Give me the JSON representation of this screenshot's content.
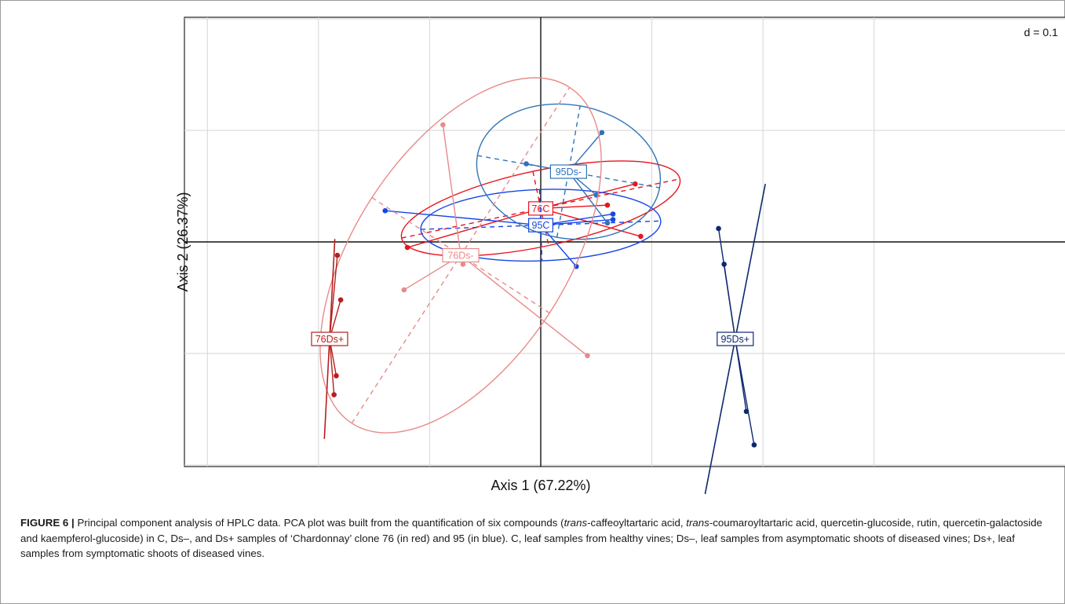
{
  "chart_data": {
    "type": "scatter",
    "subtype": "PCA class plot (ade4 s.class)",
    "title": "",
    "scale_label": "d = 0.1",
    "xlabel": "Axis 1  (67.22%)",
    "ylabel": "Axis 2  (26.37%)",
    "xlim": [
      -0.32,
      0.32
    ],
    "ylim": [
      -0.2,
      0.21
    ],
    "grid": true,
    "grid_step": 0.1,
    "groups": [
      {
        "name": "76C",
        "color": "#e8141c",
        "center": [
          0.0,
          0.03
        ],
        "points": [
          [
            -0.12,
            -0.005
          ],
          [
            0.09,
            0.005
          ],
          [
            0.06,
            0.033
          ],
          [
            0.085,
            0.052
          ]
        ],
        "ellipse": {
          "rx": 0.128,
          "ry": 0.034,
          "angle": 12
        }
      },
      {
        "name": "95C",
        "color": "#1646e6",
        "center": [
          0.0,
          0.015
        ],
        "points": [
          [
            -0.14,
            0.028
          ],
          [
            0.065,
            0.025
          ],
          [
            0.065,
            0.02
          ],
          [
            0.032,
            -0.022
          ]
        ],
        "ellipse": {
          "rx": 0.108,
          "ry": 0.032,
          "angle": 2
        }
      },
      {
        "name": "95Ds-",
        "color": "#2f74b8",
        "center": [
          0.025,
          0.063
        ],
        "points": [
          [
            -0.013,
            0.07
          ],
          [
            0.055,
            0.098
          ],
          [
            0.05,
            0.042
          ],
          [
            0.06,
            0.017
          ]
        ],
        "ellipse": {
          "rx": 0.06,
          "ry": 0.083,
          "angle": 80
        }
      },
      {
        "name": "76Ds-",
        "color": "#e88a8a",
        "center": [
          -0.072,
          -0.012
        ],
        "points": [
          [
            -0.088,
            0.105
          ],
          [
            -0.123,
            -0.043
          ],
          [
            0.042,
            -0.102
          ],
          [
            -0.07,
            -0.02
          ]
        ],
        "ellipse": {
          "rx": 0.18,
          "ry": 0.095,
          "angle": 57
        }
      },
      {
        "name": "76Ds+",
        "color": "#b81e1e",
        "center": [
          -0.19,
          -0.087
        ],
        "points": [
          [
            -0.18,
            -0.052
          ],
          [
            -0.184,
            -0.12
          ],
          [
            -0.183,
            -0.012
          ],
          [
            -0.186,
            -0.137
          ]
        ],
        "ellipse": {
          "rx": 0.09,
          "ry": 0.0015,
          "angle": 87
        }
      },
      {
        "name": "95Ds+",
        "color": "#0d2870",
        "center": [
          0.175,
          -0.087
        ],
        "points": [
          [
            0.165,
            -0.02
          ],
          [
            0.185,
            -0.152
          ],
          [
            0.16,
            0.012
          ],
          [
            0.192,
            -0.182
          ]
        ],
        "ellipse": {
          "rx": 0.142,
          "ry": 0.0015,
          "angle": 79
        }
      }
    ]
  },
  "caption": {
    "label": "FIGURE 6 |",
    "line1_pre": "Principal component analysis of HPLC data. PCA plot was built from the quantification of six compounds (",
    "line1_italic": "trans",
    "line1_post": "-caffeoyltartaric acid,",
    "line2_italic": "trans",
    "line2_post": "-coumaroyltartaric acid, quercetin-glucoside, rutin, quercetin-galactoside and kaempferol-glucoside) in C, Ds–, and Ds+ samples of ‘Chardonnay’ clone 76 (in red) and 95 (in blue). C, leaf samples from healthy vines; Ds–, leaf samples from asymptomatic shoots of diseased vines; Ds+, leaf samples from symptomatic shoots of diseased vines."
  }
}
